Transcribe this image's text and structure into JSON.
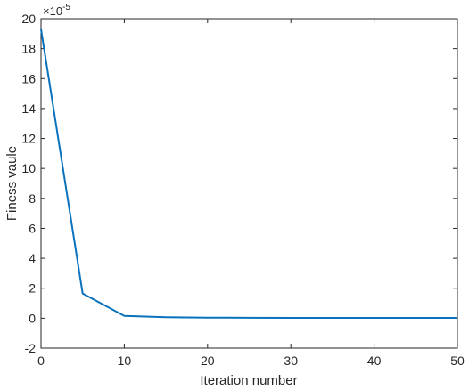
{
  "chart_data": {
    "type": "line",
    "title": "",
    "xlabel": "Iteration number",
    "ylabel": "Finess vaule",
    "y_exponent_label": "×10",
    "y_exponent": "-5",
    "xlim": [
      0,
      50
    ],
    "ylim": [
      -2,
      20
    ],
    "x_ticks": [
      "0",
      "10",
      "20",
      "30",
      "40",
      "50"
    ],
    "y_ticks": [
      "-2",
      "0",
      "2",
      "4",
      "6",
      "8",
      "10",
      "12",
      "14",
      "16",
      "18",
      "20"
    ],
    "grid": false,
    "series": [
      {
        "color": "#0a72bd",
        "x": [
          0,
          5,
          10,
          15,
          20,
          25,
          30,
          35,
          40,
          45,
          50
        ],
        "y": [
          19.3,
          1.65,
          0.15,
          0.07,
          0.04,
          0.03,
          0.02,
          0.02,
          0.02,
          0.02,
          0.02
        ]
      }
    ]
  }
}
